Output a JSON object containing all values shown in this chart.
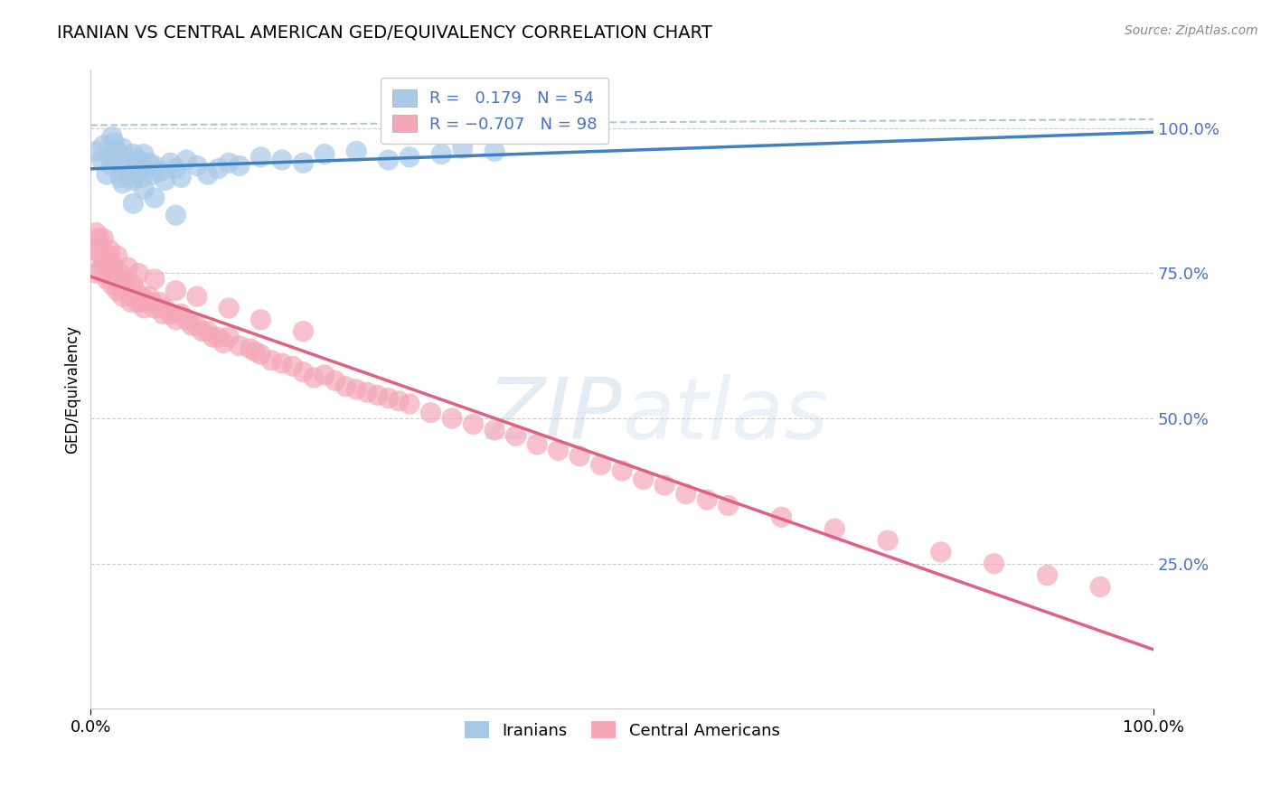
{
  "title": "IRANIAN VS CENTRAL AMERICAN GED/EQUIVALENCY CORRELATION CHART",
  "source": "Source: ZipAtlas.com",
  "ylabel": "GED/Equivalency",
  "xlim": [
    0.0,
    1.0
  ],
  "ylim": [
    0.0,
    1.1
  ],
  "ytick_vals": [
    0.25,
    0.5,
    0.75,
    1.0
  ],
  "ytick_labels": [
    "25.0%",
    "50.0%",
    "75.0%",
    "100.0%"
  ],
  "xtick_vals": [
    0.0,
    1.0
  ],
  "xtick_labels": [
    "0.0%",
    "100.0%"
  ],
  "iranian_R": 0.179,
  "iranian_N": 54,
  "ca_R": -0.707,
  "ca_N": 98,
  "iranian_color": "#A8C8E8",
  "ca_color": "#F4A8B8",
  "iranian_line_color": "#4080C0",
  "ca_line_color": "#E06080",
  "dashed_line_color": "#8AAED0",
  "watermark_color": "#C8D8EC",
  "tick_label_color": "#4472C4",
  "background_color": "#FFFFFF",
  "iranian_x": [
    0.005,
    0.01,
    0.012,
    0.015,
    0.018,
    0.02,
    0.022,
    0.025,
    0.025,
    0.028,
    0.03,
    0.03,
    0.032,
    0.035,
    0.035,
    0.038,
    0.04,
    0.04,
    0.042,
    0.045,
    0.045,
    0.048,
    0.05,
    0.05,
    0.055,
    0.058,
    0.06,
    0.065,
    0.07,
    0.075,
    0.08,
    0.085,
    0.09,
    0.1,
    0.11,
    0.12,
    0.13,
    0.14,
    0.16,
    0.18,
    0.2,
    0.22,
    0.25,
    0.28,
    0.3,
    0.33,
    0.35,
    0.38,
    0.02,
    0.03,
    0.04,
    0.05,
    0.06,
    0.08
  ],
  "iranian_y": [
    0.96,
    0.945,
    0.97,
    0.92,
    0.95,
    0.935,
    0.975,
    0.94,
    0.96,
    0.915,
    0.95,
    0.965,
    0.935,
    0.92,
    0.945,
    0.93,
    0.955,
    0.91,
    0.94,
    0.925,
    0.945,
    0.915,
    0.93,
    0.955,
    0.94,
    0.92,
    0.935,
    0.925,
    0.91,
    0.94,
    0.93,
    0.915,
    0.945,
    0.935,
    0.92,
    0.93,
    0.94,
    0.935,
    0.95,
    0.945,
    0.94,
    0.955,
    0.96,
    0.945,
    0.95,
    0.955,
    0.965,
    0.96,
    0.985,
    0.905,
    0.87,
    0.895,
    0.88,
    0.85
  ],
  "ca_x": [
    0.003,
    0.005,
    0.008,
    0.01,
    0.01,
    0.012,
    0.015,
    0.015,
    0.018,
    0.02,
    0.02,
    0.022,
    0.025,
    0.025,
    0.028,
    0.03,
    0.03,
    0.032,
    0.035,
    0.038,
    0.04,
    0.04,
    0.042,
    0.045,
    0.048,
    0.05,
    0.05,
    0.055,
    0.058,
    0.06,
    0.065,
    0.068,
    0.07,
    0.075,
    0.08,
    0.085,
    0.09,
    0.095,
    0.1,
    0.105,
    0.11,
    0.115,
    0.12,
    0.125,
    0.13,
    0.14,
    0.15,
    0.155,
    0.16,
    0.17,
    0.18,
    0.19,
    0.2,
    0.21,
    0.22,
    0.23,
    0.24,
    0.25,
    0.26,
    0.27,
    0.28,
    0.29,
    0.3,
    0.32,
    0.34,
    0.36,
    0.38,
    0.4,
    0.42,
    0.44,
    0.46,
    0.48,
    0.5,
    0.52,
    0.54,
    0.56,
    0.58,
    0.6,
    0.65,
    0.7,
    0.75,
    0.8,
    0.85,
    0.9,
    0.95,
    0.005,
    0.008,
    0.012,
    0.018,
    0.025,
    0.035,
    0.045,
    0.06,
    0.08,
    0.1,
    0.13,
    0.16,
    0.2
  ],
  "ca_y": [
    0.79,
    0.75,
    0.81,
    0.76,
    0.78,
    0.77,
    0.74,
    0.76,
    0.78,
    0.75,
    0.73,
    0.76,
    0.74,
    0.72,
    0.75,
    0.73,
    0.71,
    0.74,
    0.72,
    0.7,
    0.73,
    0.71,
    0.72,
    0.7,
    0.71,
    0.7,
    0.69,
    0.71,
    0.7,
    0.69,
    0.7,
    0.68,
    0.69,
    0.68,
    0.67,
    0.68,
    0.67,
    0.66,
    0.66,
    0.65,
    0.65,
    0.64,
    0.64,
    0.63,
    0.64,
    0.625,
    0.62,
    0.615,
    0.61,
    0.6,
    0.595,
    0.59,
    0.58,
    0.57,
    0.575,
    0.565,
    0.555,
    0.55,
    0.545,
    0.54,
    0.535,
    0.53,
    0.525,
    0.51,
    0.5,
    0.49,
    0.48,
    0.47,
    0.455,
    0.445,
    0.435,
    0.42,
    0.41,
    0.395,
    0.385,
    0.37,
    0.36,
    0.35,
    0.33,
    0.31,
    0.29,
    0.27,
    0.25,
    0.23,
    0.21,
    0.82,
    0.8,
    0.81,
    0.79,
    0.78,
    0.76,
    0.75,
    0.74,
    0.72,
    0.71,
    0.69,
    0.67,
    0.65
  ],
  "legend_iranian_label": "R =   0.179   N = 54",
  "legend_ca_label": "R = −0.707   N = 98",
  "bottom_legend_iranian": "Iranians",
  "bottom_legend_ca": "Central Americans"
}
